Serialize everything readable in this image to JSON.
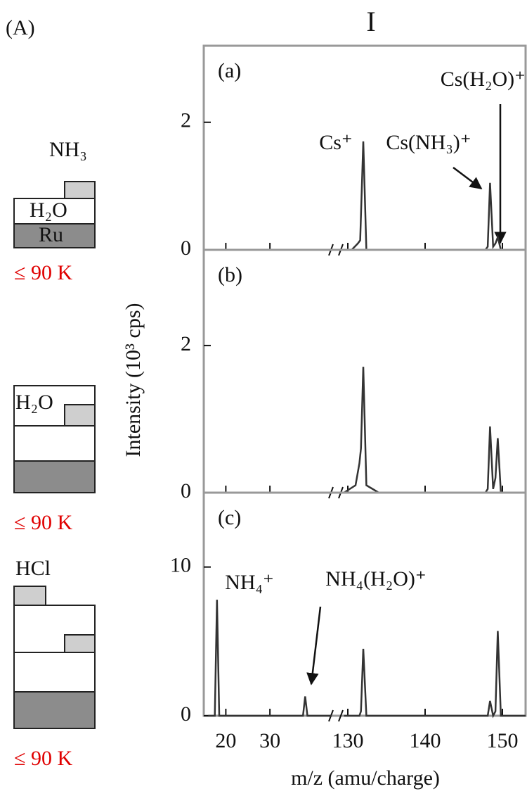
{
  "panel_label": "(A)",
  "column_label": "I",
  "ylabel": "Intensity (10³ cps)",
  "xlabel": "m/z (amu/charge)",
  "schematics": [
    {
      "labels": [
        "NH₃",
        "H₂O",
        "Ru"
      ],
      "temperature": "≤ 90 K"
    },
    {
      "labels": [
        "H₂O"
      ],
      "temperature": "≤ 90 K"
    },
    {
      "labels": [
        "HCl"
      ],
      "temperature": "≤ 90 K"
    }
  ],
  "chart_data": [
    {
      "type": "line",
      "label": "(a)",
      "xlim": [
        15,
        153
      ],
      "xbreak": [
        44,
        129
      ],
      "xticks": [
        20,
        30,
        130,
        140,
        150
      ],
      "ylim": [
        0,
        3.2
      ],
      "yticks": [
        0,
        2
      ],
      "annotations": [
        "Cs⁺",
        "Cs(NH₃)⁺",
        "Cs(H₂O)⁺"
      ],
      "series": [
        {
          "color": "#333333",
          "x": [
            129.5,
            130.5,
            131.3,
            131.6,
            132,
            132.4,
            134,
            147.8,
            148.1,
            148.4,
            148.8,
            149.1,
            149.4,
            149.8,
            153
          ],
          "values": [
            0,
            0,
            0.1,
            0.15,
            1.7,
            0,
            0,
            0,
            0.05,
            1.05,
            0.05,
            0.1,
            0.2,
            0,
            0
          ]
        }
      ]
    },
    {
      "type": "line",
      "label": "(b)",
      "xlim": [
        15,
        153
      ],
      "xbreak": [
        44,
        129
      ],
      "xticks": [
        20,
        30,
        130,
        140,
        150
      ],
      "ylim": [
        0,
        3.3
      ],
      "yticks": [
        0,
        2
      ],
      "annotations": [],
      "series": [
        {
          "color": "#333333",
          "x": [
            129.5,
            131,
            131.5,
            131.7,
            132,
            132.4,
            134,
            147.8,
            148.1,
            148.4,
            148.8,
            149.1,
            149.4,
            149.8,
            153
          ],
          "values": [
            0,
            0.1,
            0.4,
            0.6,
            1.71,
            0.1,
            0,
            0,
            0.05,
            0.9,
            0.05,
            0.2,
            0.74,
            0,
            0
          ]
        }
      ]
    },
    {
      "type": "line",
      "label": "(c)",
      "xlim": [
        15,
        153
      ],
      "xbreak": [
        44,
        129
      ],
      "xticks": [
        20,
        30,
        130,
        140,
        150
      ],
      "ylim": [
        0,
        15
      ],
      "yticks": [
        0,
        10
      ],
      "annotations": [
        "NH₄⁺",
        "NH₄(H₂O)⁺"
      ],
      "series": [
        {
          "color": "#333333",
          "x": [
            16,
            17.5,
            18,
            18.5,
            19,
            37.5,
            38,
            38.5,
            44,
            129,
            129.5,
            131.5,
            131.7,
            132,
            132.4,
            147.8,
            148.1,
            148.4,
            148.8,
            149.1,
            149.4,
            149.8,
            153
          ],
          "values": [
            0,
            0,
            7.8,
            0,
            0,
            0,
            1.3,
            0,
            0,
            null,
            0,
            0,
            0.3,
            4.5,
            0,
            0,
            0,
            1.0,
            0,
            0.3,
            5.7,
            0,
            0
          ]
        }
      ]
    }
  ]
}
